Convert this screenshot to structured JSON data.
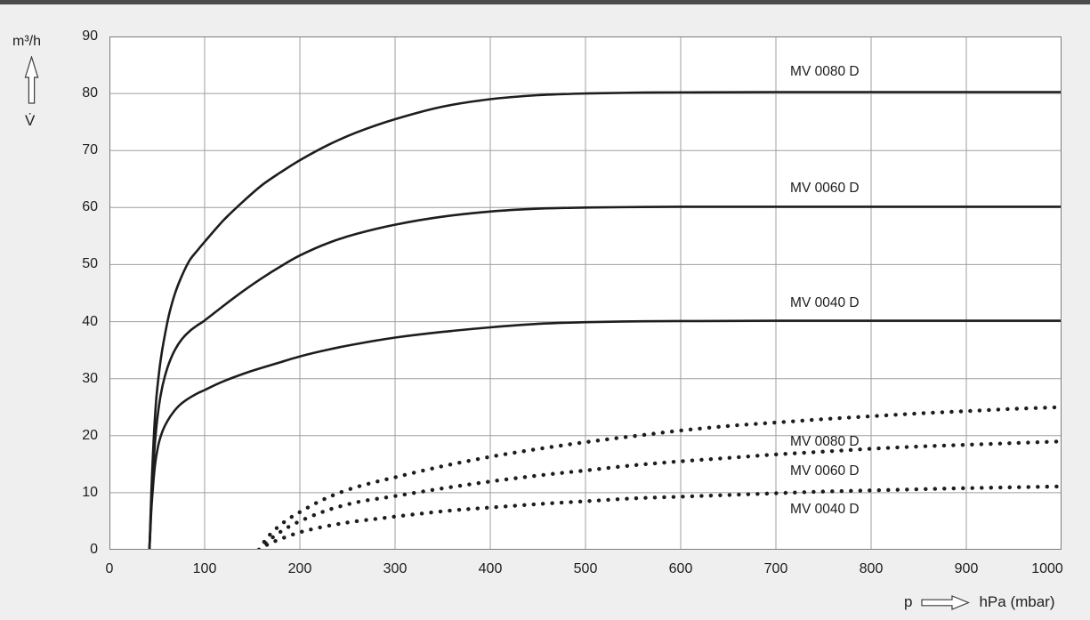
{
  "page": {
    "background_color": "#efefef",
    "topbar_color": "#4b4b4d",
    "curve_color": "#1d1d1b",
    "grid_color": "#9f9f9f",
    "border_color": "#7d7d7d"
  },
  "y_axis": {
    "unit": "m³/h",
    "symbol": "V̇",
    "ticks": [
      90,
      80,
      70,
      60,
      50,
      40,
      30,
      20,
      10,
      0
    ]
  },
  "x_axis": {
    "symbol": "p",
    "unit": "hPa (mbar)",
    "ticks": [
      0,
      100,
      200,
      300,
      400,
      500,
      600,
      700,
      800,
      900,
      1000
    ]
  },
  "chart_data": {
    "type": "line",
    "title": "",
    "xlabel": "p hPa (mbar)",
    "ylabel": "V̇ m³/h",
    "xlim": [
      0,
      1000
    ],
    "ylim": [
      0,
      90
    ],
    "grid": true,
    "legend_position": "inline-right-labels",
    "series": [
      {
        "name": "MV 0080 D solid",
        "label": "MV 0080 D",
        "line_style": "solid",
        "label_anchor": {
          "p": 715,
          "v": 83.8
        },
        "points": [
          [
            42,
            0
          ],
          [
            43,
            5
          ],
          [
            44,
            10
          ],
          [
            45.5,
            16
          ],
          [
            47,
            21
          ],
          [
            49,
            26
          ],
          [
            51,
            29.5
          ],
          [
            54,
            33.5
          ],
          [
            58,
            37.5
          ],
          [
            63,
            41.5
          ],
          [
            69,
            45
          ],
          [
            76,
            48
          ],
          [
            84,
            50.7
          ],
          [
            92,
            52.4
          ],
          [
            100,
            54
          ],
          [
            120,
            57.8
          ],
          [
            140,
            61
          ],
          [
            160,
            63.9
          ],
          [
            180,
            66.2
          ],
          [
            200,
            68.3
          ],
          [
            230,
            71
          ],
          [
            260,
            73.2
          ],
          [
            300,
            75.5
          ],
          [
            350,
            77.7
          ],
          [
            400,
            79
          ],
          [
            450,
            79.7
          ],
          [
            500,
            80
          ],
          [
            560,
            80.15
          ],
          [
            620,
            80.2
          ],
          [
            700,
            80.25
          ],
          [
            800,
            80.25
          ],
          [
            900,
            80.25
          ],
          [
            1000,
            80.25
          ]
        ]
      },
      {
        "name": "MV 0060 D solid",
        "label": "MV 0060 D",
        "line_style": "solid",
        "label_anchor": {
          "p": 715,
          "v": 63.3
        },
        "points": [
          [
            42,
            0
          ],
          [
            43,
            4
          ],
          [
            44,
            8
          ],
          [
            45.5,
            13
          ],
          [
            47,
            17
          ],
          [
            49,
            21
          ],
          [
            51,
            24
          ],
          [
            54,
            27.3
          ],
          [
            58,
            30.3
          ],
          [
            63,
            32.9
          ],
          [
            69,
            35.1
          ],
          [
            76,
            36.9
          ],
          [
            84,
            38.3
          ],
          [
            92,
            39.3
          ],
          [
            100,
            40.2
          ],
          [
            120,
            42.8
          ],
          [
            140,
            45.3
          ],
          [
            160,
            47.6
          ],
          [
            180,
            49.7
          ],
          [
            200,
            51.6
          ],
          [
            230,
            53.8
          ],
          [
            260,
            55.4
          ],
          [
            300,
            57
          ],
          [
            350,
            58.4
          ],
          [
            400,
            59.3
          ],
          [
            450,
            59.8
          ],
          [
            500,
            60
          ],
          [
            560,
            60.1
          ],
          [
            620,
            60.15
          ],
          [
            700,
            60.15
          ],
          [
            800,
            60.15
          ],
          [
            900,
            60.15
          ],
          [
            1000,
            60.15
          ]
        ]
      },
      {
        "name": "MV 0040 D solid",
        "label": "MV 0040 D",
        "line_style": "solid",
        "label_anchor": {
          "p": 715,
          "v": 43.2
        },
        "points": [
          [
            42,
            0
          ],
          [
            43,
            3.5
          ],
          [
            44,
            7
          ],
          [
            45.5,
            10.5
          ],
          [
            47,
            13.5
          ],
          [
            49,
            16.2
          ],
          [
            52,
            18.8
          ],
          [
            56,
            20.9
          ],
          [
            61,
            22.6
          ],
          [
            67,
            24.1
          ],
          [
            74,
            25.4
          ],
          [
            82,
            26.4
          ],
          [
            91,
            27.3
          ],
          [
            100,
            28
          ],
          [
            115,
            29.2
          ],
          [
            130,
            30.2
          ],
          [
            145,
            31.1
          ],
          [
            160,
            31.9
          ],
          [
            180,
            32.9
          ],
          [
            200,
            33.9
          ],
          [
            230,
            35.1
          ],
          [
            260,
            36.1
          ],
          [
            300,
            37.2
          ],
          [
            350,
            38.2
          ],
          [
            400,
            39
          ],
          [
            450,
            39.6
          ],
          [
            500,
            39.9
          ],
          [
            560,
            40.05
          ],
          [
            620,
            40.1
          ],
          [
            700,
            40.15
          ],
          [
            800,
            40.15
          ],
          [
            900,
            40.15
          ],
          [
            1000,
            40.15
          ]
        ]
      },
      {
        "name": "MV 0080 D dotted",
        "label": "MV 0080 D",
        "line_style": "dotted",
        "label_anchor": {
          "p": 715,
          "v": 18.9
        },
        "points": [
          [
            157,
            0
          ],
          [
            163,
            1.5
          ],
          [
            170,
            2.9
          ],
          [
            180,
            4.4
          ],
          [
            190,
            5.6
          ],
          [
            200,
            6.6
          ],
          [
            215,
            8
          ],
          [
            230,
            9.2
          ],
          [
            250,
            10.5
          ],
          [
            275,
            11.7
          ],
          [
            300,
            12.7
          ],
          [
            330,
            13.9
          ],
          [
            360,
            15
          ],
          [
            400,
            16.3
          ],
          [
            440,
            17.4
          ],
          [
            480,
            18.4
          ],
          [
            520,
            19.3
          ],
          [
            560,
            20.1
          ],
          [
            600,
            20.9
          ],
          [
            650,
            21.7
          ],
          [
            700,
            22.3
          ],
          [
            750,
            22.9
          ],
          [
            800,
            23.4
          ],
          [
            850,
            23.9
          ],
          [
            900,
            24.3
          ],
          [
            950,
            24.7
          ],
          [
            1000,
            25
          ]
        ]
      },
      {
        "name": "MV 0060 D dotted",
        "label": "MV 0060 D",
        "line_style": "dotted",
        "label_anchor": {
          "p": 715,
          "v": 13.7
        },
        "points": [
          [
            157,
            0
          ],
          [
            165,
            1.3
          ],
          [
            175,
            2.6
          ],
          [
            186,
            3.8
          ],
          [
            200,
            5
          ],
          [
            220,
            6.4
          ],
          [
            240,
            7.5
          ],
          [
            265,
            8.5
          ],
          [
            300,
            9.4
          ],
          [
            340,
            10.5
          ],
          [
            380,
            11.5
          ],
          [
            420,
            12.4
          ],
          [
            460,
            13.2
          ],
          [
            500,
            13.9
          ],
          [
            550,
            14.8
          ],
          [
            600,
            15.5
          ],
          [
            650,
            16.1
          ],
          [
            700,
            16.7
          ],
          [
            750,
            17.2
          ],
          [
            800,
            17.7
          ],
          [
            850,
            18.1
          ],
          [
            900,
            18.4
          ],
          [
            950,
            18.7
          ],
          [
            1000,
            19
          ]
        ]
      },
      {
        "name": "MV 0040 D dotted",
        "label": "MV 0040 D",
        "line_style": "dotted",
        "label_anchor": {
          "p": 715,
          "v": 7.0
        },
        "points": [
          [
            157,
            0
          ],
          [
            167,
            1
          ],
          [
            180,
            1.9
          ],
          [
            195,
            2.8
          ],
          [
            210,
            3.5
          ],
          [
            230,
            4.2
          ],
          [
            255,
            4.9
          ],
          [
            285,
            5.5
          ],
          [
            320,
            6.2
          ],
          [
            360,
            6.9
          ],
          [
            400,
            7.4
          ],
          [
            450,
            8
          ],
          [
            500,
            8.5
          ],
          [
            550,
            9
          ],
          [
            600,
            9.3
          ],
          [
            650,
            9.6
          ],
          [
            700,
            9.9
          ],
          [
            750,
            10.2
          ],
          [
            800,
            10.4
          ],
          [
            850,
            10.6
          ],
          [
            900,
            10.8
          ],
          [
            950,
            10.95
          ],
          [
            1000,
            11.1
          ]
        ]
      }
    ]
  }
}
